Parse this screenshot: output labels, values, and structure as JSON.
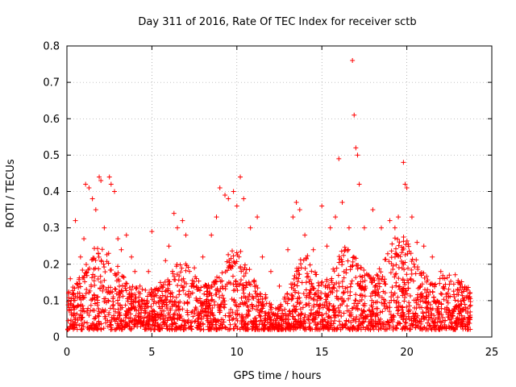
{
  "chart_data": {
    "type": "scatter",
    "title": "Day 311 of 2016, Rate Of TEC Index for receiver sctb",
    "xlabel": "GPS time / hours",
    "ylabel": "ROTI / TECUs",
    "xlim": [
      0,
      25
    ],
    "ylim": [
      0,
      0.8
    ],
    "x_ticks": [
      0,
      5,
      10,
      15,
      20,
      25
    ],
    "y_ticks": [
      0,
      0.1,
      0.2,
      0.3,
      0.4,
      0.5,
      0.6,
      0.7,
      0.8
    ],
    "x_tick_labels": [
      "0",
      "5",
      "10",
      "15",
      "20",
      "25"
    ],
    "y_tick_labels": [
      "0",
      "0.1",
      "0.2",
      "0.3",
      "0.4",
      "0.5",
      "0.6",
      "0.7",
      "0.8"
    ],
    "grid": true,
    "marker": "plus",
    "color": "#ff0000",
    "series": [
      {
        "name": "ROTI",
        "envelope_note": "dense cloud of samples from 0 to ~24 h; typical values 0.02-0.15 TECU/min",
        "points": [
          [
            0.2,
            0.16
          ],
          [
            0.5,
            0.32
          ],
          [
            0.8,
            0.22
          ],
          [
            1.0,
            0.27
          ],
          [
            1.1,
            0.42
          ],
          [
            1.3,
            0.41
          ],
          [
            1.5,
            0.38
          ],
          [
            1.7,
            0.35
          ],
          [
            1.9,
            0.44
          ],
          [
            2.0,
            0.43
          ],
          [
            2.2,
            0.3
          ],
          [
            2.5,
            0.44
          ],
          [
            2.6,
            0.42
          ],
          [
            2.8,
            0.4
          ],
          [
            3.0,
            0.27
          ],
          [
            3.2,
            0.24
          ],
          [
            3.5,
            0.28
          ],
          [
            3.8,
            0.22
          ],
          [
            4.0,
            0.18
          ],
          [
            4.3,
            0.14
          ],
          [
            4.8,
            0.18
          ],
          [
            5.0,
            0.29
          ],
          [
            5.5,
            0.15
          ],
          [
            5.8,
            0.21
          ],
          [
            6.0,
            0.25
          ],
          [
            6.3,
            0.34
          ],
          [
            6.5,
            0.3
          ],
          [
            6.8,
            0.32
          ],
          [
            7.0,
            0.28
          ],
          [
            7.5,
            0.19
          ],
          [
            8.0,
            0.22
          ],
          [
            8.5,
            0.28
          ],
          [
            8.8,
            0.33
          ],
          [
            9.0,
            0.41
          ],
          [
            9.3,
            0.39
          ],
          [
            9.5,
            0.38
          ],
          [
            9.8,
            0.4
          ],
          [
            10.0,
            0.36
          ],
          [
            10.2,
            0.44
          ],
          [
            10.4,
            0.38
          ],
          [
            10.8,
            0.3
          ],
          [
            11.2,
            0.33
          ],
          [
            11.5,
            0.22
          ],
          [
            12.0,
            0.18
          ],
          [
            12.5,
            0.14
          ],
          [
            13.0,
            0.24
          ],
          [
            13.3,
            0.33
          ],
          [
            13.5,
            0.37
          ],
          [
            13.7,
            0.35
          ],
          [
            14.0,
            0.28
          ],
          [
            14.5,
            0.24
          ],
          [
            15.0,
            0.36
          ],
          [
            15.3,
            0.25
          ],
          [
            15.5,
            0.3
          ],
          [
            15.8,
            0.33
          ],
          [
            16.0,
            0.49
          ],
          [
            16.2,
            0.37
          ],
          [
            16.4,
            0.24
          ],
          [
            16.6,
            0.3
          ],
          [
            16.8,
            0.76
          ],
          [
            16.9,
            0.61
          ],
          [
            17.0,
            0.52
          ],
          [
            17.1,
            0.5
          ],
          [
            17.2,
            0.42
          ],
          [
            17.5,
            0.3
          ],
          [
            18.0,
            0.35
          ],
          [
            18.5,
            0.3
          ],
          [
            19.0,
            0.32
          ],
          [
            19.3,
            0.3
          ],
          [
            19.5,
            0.33
          ],
          [
            19.8,
            0.48
          ],
          [
            19.9,
            0.42
          ],
          [
            20.0,
            0.41
          ],
          [
            20.3,
            0.33
          ],
          [
            20.6,
            0.26
          ],
          [
            21.0,
            0.25
          ],
          [
            21.5,
            0.22
          ],
          [
            22.0,
            0.18
          ],
          [
            22.5,
            0.17
          ],
          [
            23.0,
            0.15
          ],
          [
            23.5,
            0.13
          ],
          [
            23.7,
            0.12
          ]
        ]
      }
    ]
  }
}
